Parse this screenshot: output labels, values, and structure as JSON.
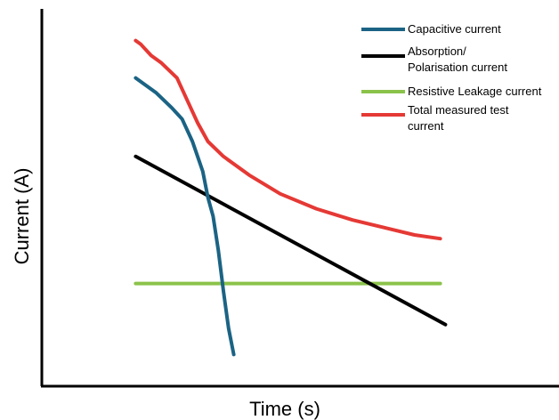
{
  "chart_data": {
    "type": "line",
    "title": "",
    "xlabel": "Time (s)",
    "ylabel": "Current (A)",
    "x_ticks": [],
    "y_ticks": [],
    "xlim": [
      0,
      100
    ],
    "ylim": [
      0,
      100
    ],
    "grid": false,
    "legend_position": "top-right",
    "series": [
      {
        "key": "capacitive",
        "name": "Capacitive current",
        "color": "#1b6384",
        "points": [
          [
            18,
            82
          ],
          [
            20,
            80
          ],
          [
            22,
            78
          ],
          [
            25,
            74
          ],
          [
            27,
            71
          ],
          [
            29,
            65
          ],
          [
            30,
            61
          ],
          [
            31,
            57
          ],
          [
            32,
            50
          ],
          [
            33,
            45
          ],
          [
            34,
            36
          ],
          [
            35,
            25
          ],
          [
            36,
            15
          ],
          [
            37,
            8
          ]
        ]
      },
      {
        "key": "absorption",
        "name": "Absorption/ Polarisation current",
        "legend_lines": [
          "Absorption/",
          "Polarisation current"
        ],
        "color": "#000000",
        "points": [
          [
            18,
            61
          ],
          [
            78,
            16
          ]
        ]
      },
      {
        "key": "resistive",
        "name": "Resistive Leakage current",
        "color": "#8bc34a",
        "points": [
          [
            18,
            27
          ],
          [
            77,
            27
          ]
        ]
      },
      {
        "key": "total",
        "name": "Total measured test current",
        "legend_lines": [
          "Total measured test",
          "current"
        ],
        "color": "#e53935",
        "points": [
          [
            18,
            92
          ],
          [
            19,
            91
          ],
          [
            21,
            88
          ],
          [
            23,
            86
          ],
          [
            26,
            82
          ],
          [
            28,
            76
          ],
          [
            30,
            70
          ],
          [
            32,
            65
          ],
          [
            35,
            61
          ],
          [
            40,
            56
          ],
          [
            46,
            51
          ],
          [
            53,
            47
          ],
          [
            60,
            44
          ],
          [
            66,
            42
          ],
          [
            72,
            40
          ],
          [
            77,
            39
          ]
        ]
      }
    ]
  }
}
